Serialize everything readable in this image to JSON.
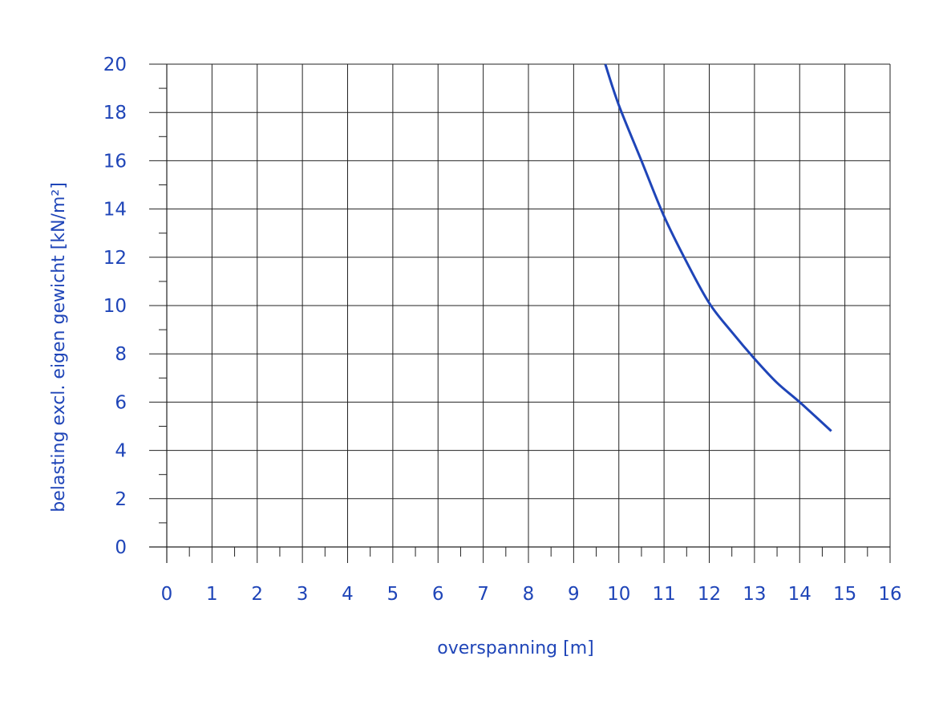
{
  "chart_data": {
    "type": "line",
    "xlabel": "overspanning [m]",
    "ylabel": "belasting excl. eigen gewicht [kN/m²]",
    "xlim": [
      0,
      16
    ],
    "ylim": [
      0,
      20
    ],
    "x_ticks": [
      0,
      1,
      2,
      3,
      4,
      5,
      6,
      7,
      8,
      9,
      10,
      11,
      12,
      13,
      14,
      15,
      16
    ],
    "y_ticks": [
      0,
      2,
      4,
      6,
      8,
      10,
      12,
      14,
      16,
      18,
      20
    ],
    "grid": true,
    "line_color": "#1f45b8",
    "series": [
      {
        "x": [
          9.7,
          10.0,
          10.5,
          11.0,
          11.5,
          12.0,
          12.5,
          13.0,
          13.5,
          14.0,
          14.7
        ],
        "y": [
          20.0,
          18.3,
          16.0,
          13.7,
          11.8,
          10.1,
          8.9,
          7.8,
          6.8,
          6.0,
          4.8
        ]
      }
    ]
  }
}
